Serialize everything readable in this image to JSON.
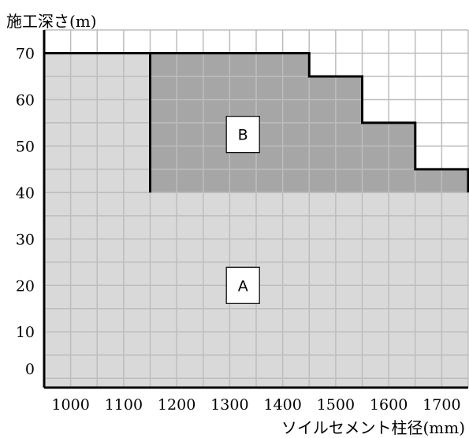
{
  "chart_data": {
    "type": "area",
    "ylabel": "施工深さ(m)",
    "xlabel": "ソイルセメント柱径(mm)",
    "x_ticks": [
      "1000",
      "1100",
      "1200",
      "1300",
      "1400",
      "1500",
      "1600",
      "1700"
    ],
    "y_ticks": [
      "0",
      "10",
      "20",
      "30",
      "40",
      "50",
      "60",
      "70"
    ],
    "xlim": [
      950,
      1750
    ],
    "ylim": [
      -2,
      75
    ],
    "grid": true,
    "regions": [
      {
        "name": "A",
        "color": "#d9d9d9",
        "boundary": [
          {
            "x": 950,
            "y": 70
          },
          {
            "x": 1150,
            "y": 70
          },
          {
            "x": 1150,
            "y": 40
          },
          {
            "x": 1750,
            "y": 40
          },
          {
            "x": 1750,
            "y": -2
          },
          {
            "x": 950,
            "y": -2
          }
        ],
        "label_at": {
          "x": 1325,
          "y": 20
        }
      },
      {
        "name": "B",
        "color": "#a6a6a6",
        "boundary": [
          {
            "x": 1150,
            "y": 40
          },
          {
            "x": 1150,
            "y": 70
          },
          {
            "x": 1450,
            "y": 70
          },
          {
            "x": 1450,
            "y": 65
          },
          {
            "x": 1550,
            "y": 65
          },
          {
            "x": 1550,
            "y": 55
          },
          {
            "x": 1650,
            "y": 55
          },
          {
            "x": 1650,
            "y": 45
          },
          {
            "x": 1750,
            "y": 45
          },
          {
            "x": 1750,
            "y": 40
          }
        ],
        "label_at": {
          "x": 1325,
          "y": 52.5
        }
      }
    ]
  }
}
